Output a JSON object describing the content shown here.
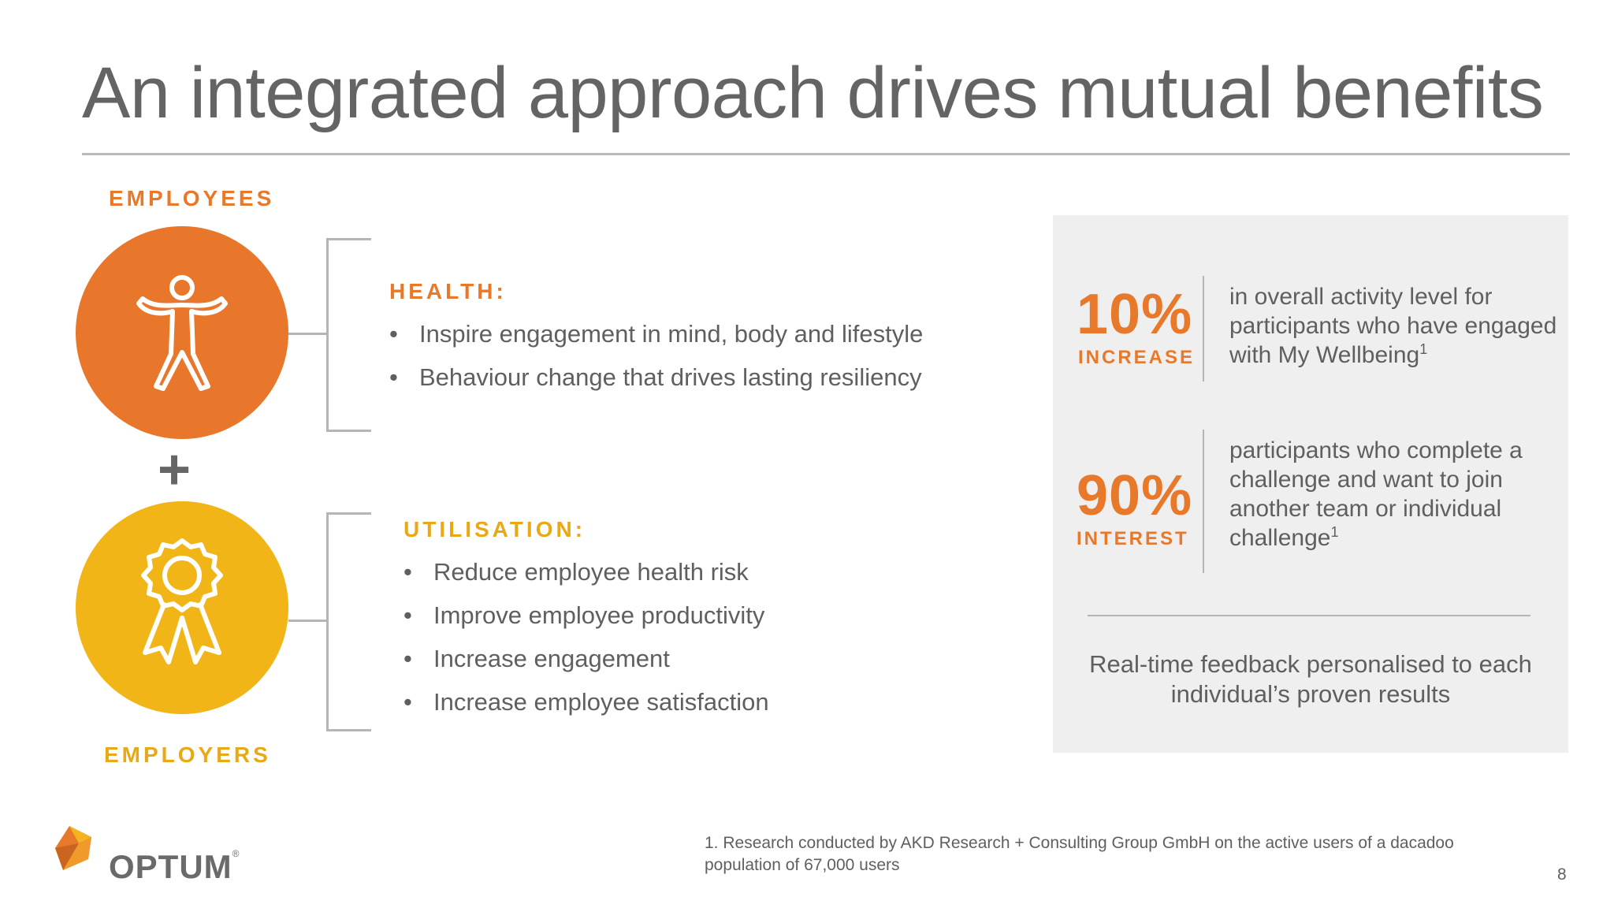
{
  "slide": {
    "title": "An integrated approach drives mutual benefits",
    "page_number": "8"
  },
  "employees": {
    "label": "EMPLOYEES",
    "icon": "person-icon",
    "color": "#e8772b"
  },
  "plus": "+",
  "employers": {
    "label": "EMPLOYERS",
    "icon": "award-ribbon-icon",
    "color": "#f1b518"
  },
  "health": {
    "heading": "HEALTH:",
    "items": [
      "Inspire engagement in mind, body and lifestyle",
      "Behaviour change that drives lasting resiliency"
    ]
  },
  "utilisation": {
    "heading": "UTILISATION:",
    "items": [
      "Reduce employee health risk",
      "Improve employee productivity",
      "Increase engagement",
      "Increase employee satisfaction"
    ]
  },
  "stats": [
    {
      "value": "10%",
      "caption": "INCREASE",
      "text": "in overall activity level for participants who have engaged with My Wellbeing",
      "footnote_ref": "1"
    },
    {
      "value": "90%",
      "caption": "INTEREST",
      "text": "participants who complete a challenge and want to join another team or individual challenge",
      "footnote_ref": "1"
    }
  ],
  "feedback": "Real-time feedback personalised to each individual’s proven results",
  "footnote": "1.  Research conducted by AKD Research + Consulting Group GmbH on the active users of a dacadoo population of 67,000 users",
  "logo": {
    "name": "OPTUM",
    "mark": "®"
  }
}
